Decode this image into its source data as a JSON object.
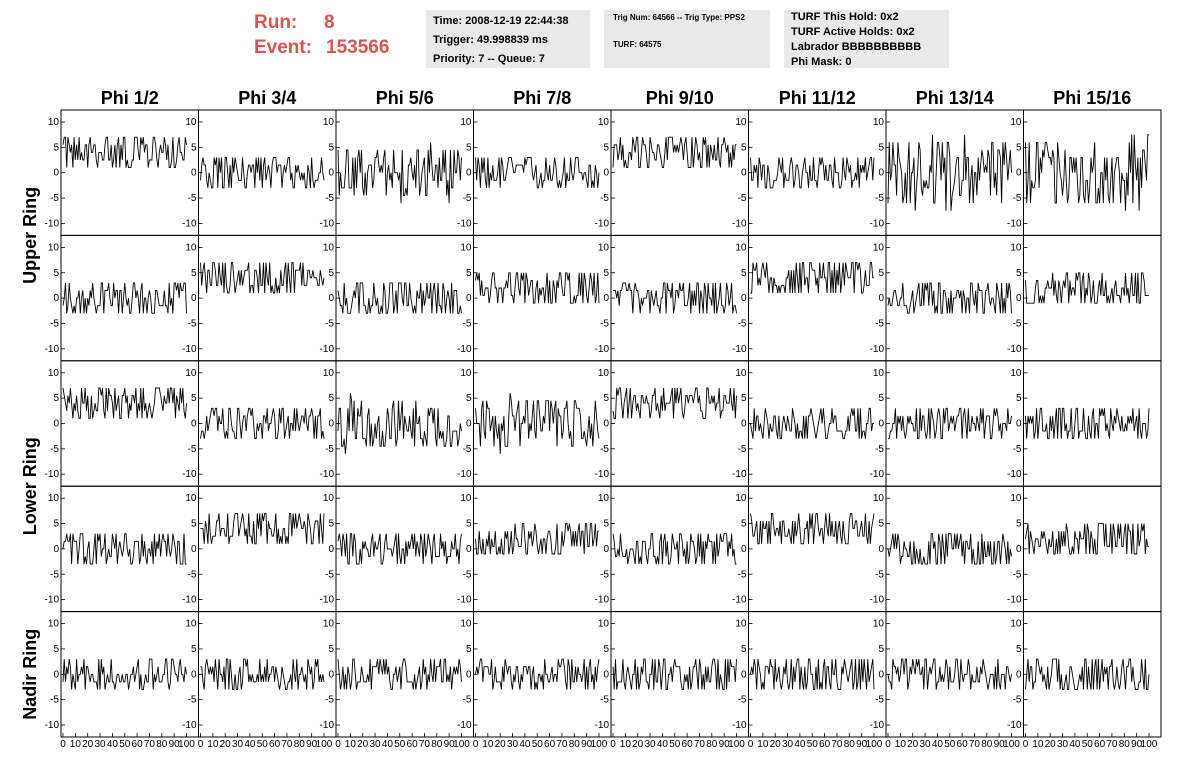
{
  "header": {
    "run_label": "Run:",
    "run_value": "8",
    "event_label": "Event:",
    "event_value": "153566"
  },
  "info_time": {
    "time": "Time: 2008-12-19 22:44:38",
    "trigger": "Trigger: 49.998839 ms",
    "priority": "Priority: 7 -- Queue: 7"
  },
  "info_trig": {
    "trig": "Trig Num: 64566 -- Trig Type: PPS2",
    "turf": "TURF: 64575"
  },
  "info_turf": {
    "hold": "TURF This Hold: 0x2",
    "active": "TURF Active Holds: 0x2",
    "labrador": "Labrador BBBBBBBBBB",
    "phimask": "Phi Mask: 0"
  },
  "chart_data": {
    "type": "line",
    "columns": [
      "Phi 1/2",
      "Phi 3/4",
      "Phi 5/6",
      "Phi 7/8",
      "Phi 9/10",
      "Phi 11/12",
      "Phi 13/14",
      "Phi 15/16"
    ],
    "rows": [
      "Upper Ring",
      "Upper Ring",
      "Lower Ring",
      "Lower Ring",
      "Nadir Ring"
    ],
    "row_labels": [
      "Upper Ring",
      "Lower Ring",
      "Nadir Ring"
    ],
    "xlim": [
      0,
      100
    ],
    "ylim": [
      -11,
      11
    ],
    "x_ticks": [
      "0",
      "10",
      "20",
      "30",
      "40",
      "50",
      "60",
      "70",
      "80",
      "90",
      "100"
    ],
    "y_ticks": [
      "10",
      "5",
      "0",
      "-5",
      "-10"
    ],
    "y_tick_values": [
      10,
      5,
      0,
      -5,
      -10
    ],
    "panel_baselines": [
      [
        4,
        0,
        0,
        0,
        4,
        0,
        0,
        0
      ],
      [
        0,
        4,
        0,
        2,
        0,
        4,
        0,
        2
      ],
      [
        4,
        0,
        0,
        0,
        4,
        0,
        0,
        0
      ],
      [
        0,
        4,
        0,
        2,
        0,
        4,
        0,
        2
      ],
      [
        0,
        0,
        0,
        0,
        0,
        0,
        0,
        0
      ]
    ],
    "panel_spread": [
      [
        2,
        2,
        3,
        2,
        2,
        2,
        4,
        4
      ],
      [
        2,
        2,
        2,
        2,
        2,
        2,
        2,
        2
      ],
      [
        2,
        2,
        3,
        3,
        2,
        2,
        2,
        2
      ],
      [
        2,
        2,
        2,
        2,
        2,
        2,
        2,
        2
      ],
      [
        2,
        2,
        2,
        2,
        2,
        2,
        2,
        2
      ]
    ]
  }
}
